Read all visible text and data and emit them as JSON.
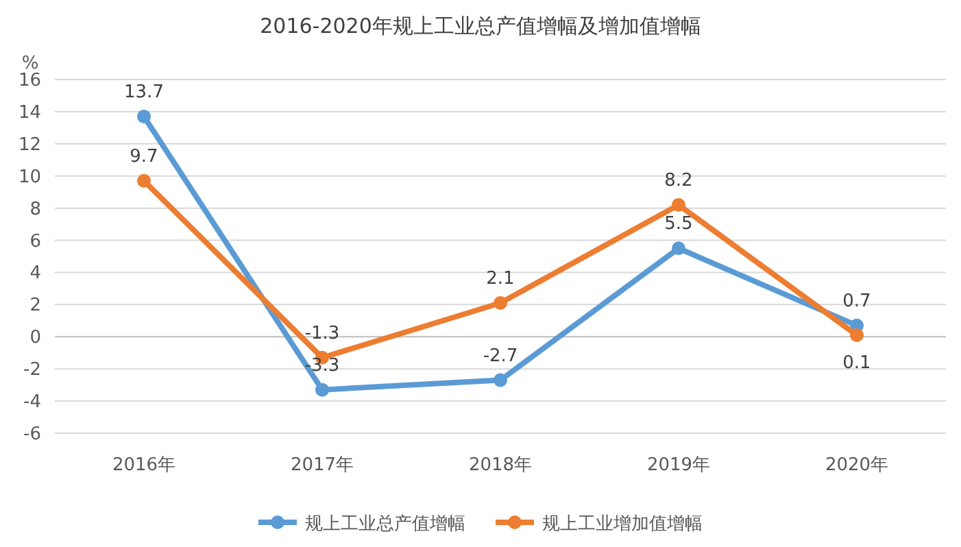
{
  "chart_data": {
    "type": "line",
    "title": "2016-2020年规上工业总产值增幅及增加值增幅",
    "ylabel": "%",
    "categories": [
      "2016年",
      "2017年",
      "2018年",
      "2019年",
      "2020年"
    ],
    "series": [
      {
        "name": "规上工业总产值增幅",
        "color": "#5b9bd5",
        "values": [
          13.7,
          -3.3,
          -2.7,
          5.5,
          0.7
        ]
      },
      {
        "name": "规上工业增加值增幅",
        "color": "#ed7d31",
        "values": [
          9.7,
          -1.3,
          2.1,
          8.2,
          0.1
        ]
      }
    ],
    "ylim": [
      -6,
      16
    ],
    "yticks": [
      -6,
      -4,
      -2,
      0,
      2,
      4,
      6,
      8,
      10,
      12,
      14,
      16
    ],
    "grid": "y",
    "legend": "bottom",
    "marker": "circle",
    "line_style": "solid",
    "data_labels": true
  }
}
